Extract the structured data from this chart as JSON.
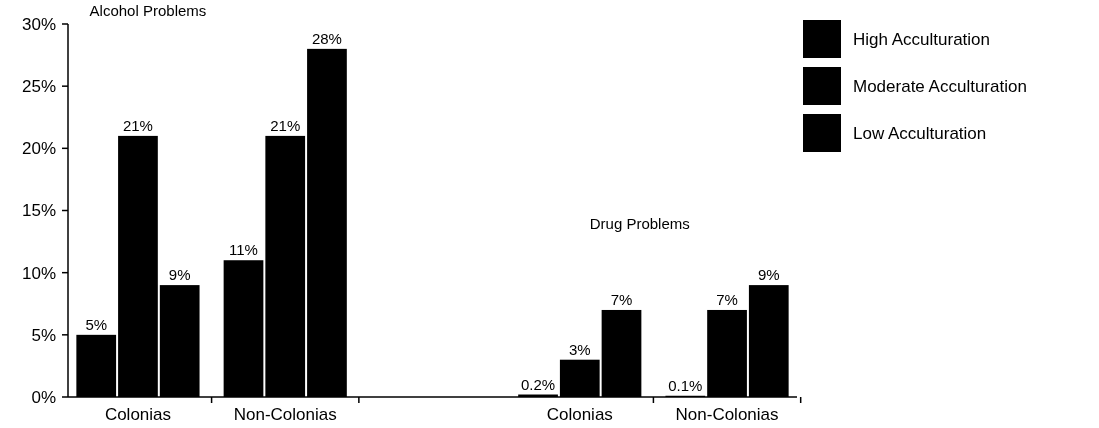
{
  "chart_data": {
    "type": "bar",
    "categories": [
      "Colonias",
      "Non-Colonias",
      null,
      "Colonias",
      "Non-Colonias"
    ],
    "series": [
      {
        "name": "High Acculturation",
        "color": "#000000",
        "values": [
          5,
          11,
          null,
          0.2,
          0.1
        ],
        "value_labels": [
          "5%",
          "11%",
          null,
          "0.2%",
          "0.1%"
        ]
      },
      {
        "name": "Moderate Acculturation",
        "color": "#000000",
        "values": [
          21,
          21,
          null,
          3,
          7
        ],
        "value_labels": [
          "21%",
          "21%",
          null,
          "3%",
          "7%"
        ]
      },
      {
        "name": "Low Acculturation",
        "color": "#000000",
        "values": [
          9,
          28,
          null,
          7,
          9
        ],
        "value_labels": [
          "9%",
          "28%",
          null,
          "7%",
          "9%"
        ]
      }
    ],
    "ylim": [
      0,
      30
    ],
    "yticks": [
      {
        "value": 0,
        "label": "0%"
      },
      {
        "value": 5,
        "label": "5%"
      },
      {
        "value": 10,
        "label": "10%"
      },
      {
        "value": 15,
        "label": "15%"
      },
      {
        "value": 20,
        "label": "20%"
      },
      {
        "value": 25,
        "label": "25%"
      },
      {
        "value": 30,
        "label": "30%"
      }
    ],
    "annotations": [
      "Alcohol Problems",
      "Drug Problems"
    ],
    "legend": "right",
    "grid": false
  }
}
